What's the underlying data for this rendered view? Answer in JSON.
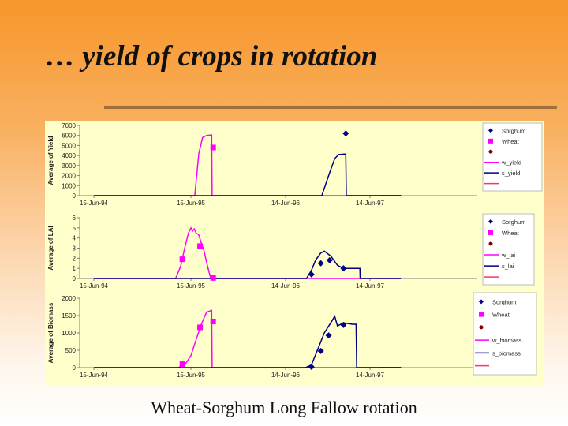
{
  "slide": {
    "title": "… yield of crops in rotation",
    "caption": "Wheat-Sorghum Long Fallow rotation"
  },
  "colors": {
    "sorghum": "#000080",
    "wheat": "#ff00ff",
    "marker3": "#800000",
    "axis_line": "#0000cc",
    "gridline": "#808080",
    "panel_bg": "#ffffcc"
  },
  "chart_data": [
    {
      "type": "line",
      "ylabel": "Average of Yield",
      "ylim": [
        0,
        7000
      ],
      "yticks": [
        0,
        1000,
        2000,
        3000,
        4000,
        5000,
        6000,
        7000
      ],
      "x_ticks": [
        "15-Jun-94",
        "15-Jun-95",
        "14-Jun-96",
        "14-Jun-97"
      ],
      "xlim": [
        "1994-06-15",
        "1997-10-15"
      ],
      "legend": [
        "Sorghum",
        "Wheat",
        "",
        "w_yield",
        "s_yield",
        ""
      ],
      "series": [
        {
          "name": "w_yield",
          "kind": "line",
          "color": "wheat",
          "points": [
            [
              "1994-06-15",
              0
            ],
            [
              "1995-07-20",
              0
            ],
            [
              "1995-08-05",
              4200
            ],
            [
              "1995-08-20",
              5800
            ],
            [
              "1995-09-05",
              6000
            ],
            [
              "1995-09-25",
              6050
            ],
            [
              "1995-09-27",
              0
            ],
            [
              "1996-12-01",
              0
            ],
            [
              "1997-06-14",
              0
            ],
            [
              "1997-10-15",
              0
            ]
          ]
        },
        {
          "name": "s_yield",
          "kind": "line",
          "color": "sorghum",
          "points": [
            [
              "1994-06-15",
              0
            ],
            [
              "1996-12-05",
              0
            ],
            [
              "1997-01-05",
              2300
            ],
            [
              "1997-01-25",
              3700
            ],
            [
              "1997-02-10",
              4100
            ],
            [
              "1997-03-10",
              4150
            ],
            [
              "1997-03-12",
              0
            ],
            [
              "1997-10-15",
              0
            ]
          ]
        },
        {
          "name": "Sorghum",
          "kind": "marker",
          "shape": "diamond",
          "color": "sorghum",
          "points": [
            [
              "1997-03-10",
              6200
            ]
          ]
        },
        {
          "name": "Wheat",
          "kind": "marker",
          "shape": "square",
          "color": "wheat",
          "points": [
            [
              "1995-10-01",
              4800
            ]
          ]
        }
      ],
      "red_tail": [
        "1997-07-25",
        "1997-10-15"
      ]
    },
    {
      "type": "line",
      "ylabel": "Average of LAI",
      "ylim": [
        0,
        6
      ],
      "yticks": [
        0,
        1,
        2,
        3,
        4,
        5,
        6
      ],
      "x_ticks": [
        "15-Jun-94",
        "15-Jun-95",
        "14-Jun-96",
        "14-Jun-97"
      ],
      "xlim": [
        "1994-06-15",
        "1997-10-15"
      ],
      "legend": [
        "Sorghum",
        "Wheat",
        "",
        "w_lai",
        "s_lai",
        ""
      ],
      "series": [
        {
          "name": "w_lai",
          "kind": "line",
          "color": "wheat",
          "points": [
            [
              "1994-06-15",
              0
            ],
            [
              "1995-05-05",
              0
            ],
            [
              "1995-05-25",
              1.2
            ],
            [
              "1995-06-10",
              3.0
            ],
            [
              "1995-06-25",
              4.5
            ],
            [
              "1995-07-05",
              5.0
            ],
            [
              "1995-07-12",
              4.7
            ],
            [
              "1995-07-18",
              4.9
            ],
            [
              "1995-07-25",
              4.5
            ],
            [
              "1995-08-05",
              4.3
            ],
            [
              "1995-08-15",
              3.5
            ],
            [
              "1995-08-25",
              2.8
            ],
            [
              "1995-09-05",
              1.6
            ],
            [
              "1995-09-15",
              0.6
            ],
            [
              "1995-09-22",
              0
            ],
            [
              "1997-10-15",
              0
            ]
          ]
        },
        {
          "name": "s_lai",
          "kind": "line",
          "color": "sorghum",
          "points": [
            [
              "1994-06-15",
              0
            ],
            [
              "1996-10-05",
              0
            ],
            [
              "1996-10-25",
              0.8
            ],
            [
              "1996-11-10",
              1.8
            ],
            [
              "1996-11-30",
              2.5
            ],
            [
              "1996-12-15",
              2.7
            ],
            [
              "1997-01-10",
              2.2
            ],
            [
              "1997-02-05",
              1.3
            ],
            [
              "1997-03-01",
              1.0
            ],
            [
              "1997-05-05",
              1.0
            ],
            [
              "1997-05-06",
              0
            ],
            [
              "1997-10-15",
              0
            ]
          ]
        },
        {
          "name": "Sorghum",
          "kind": "marker",
          "shape": "diamond",
          "color": "sorghum",
          "points": [
            [
              "1996-10-25",
              0.4
            ],
            [
              "1996-12-01",
              1.5
            ],
            [
              "1997-01-05",
              1.8
            ],
            [
              "1997-03-01",
              1.0
            ]
          ]
        },
        {
          "name": "Wheat",
          "kind": "marker",
          "shape": "square",
          "color": "wheat",
          "points": [
            [
              "1995-06-01",
              1.9
            ],
            [
              "1995-08-10",
              3.2
            ],
            [
              "1995-10-01",
              0.05
            ]
          ]
        }
      ]
    },
    {
      "type": "line",
      "ylabel": "Average of Biomass",
      "ylim": [
        0,
        2000
      ],
      "yticks": [
        0,
        500,
        1000,
        1500,
        2000
      ],
      "x_ticks": [
        "15-Jun-94",
        "15-Jun-95",
        "14-Jun-96",
        "14-Jun-97"
      ],
      "xlim": [
        "1994-06-15",
        "1997-10-15"
      ],
      "legend": [
        "Sorghum",
        "Wheat",
        "",
        "w_biomass",
        "s_biomass",
        ""
      ],
      "series": [
        {
          "name": "w_biomass",
          "kind": "line",
          "color": "wheat",
          "points": [
            [
              "1994-06-15",
              0
            ],
            [
              "1995-05-15",
              0
            ],
            [
              "1995-06-10",
              80
            ],
            [
              "1995-07-05",
              350
            ],
            [
              "1995-07-25",
              800
            ],
            [
              "1995-08-15",
              1250
            ],
            [
              "1995-09-05",
              1600
            ],
            [
              "1995-09-25",
              1650
            ],
            [
              "1995-09-27",
              0
            ],
            [
              "1996-12-01",
              0
            ],
            [
              "1997-06-14",
              0
            ],
            [
              "1997-10-15",
              0
            ]
          ]
        },
        {
          "name": "s_biomass",
          "kind": "line",
          "color": "sorghum",
          "points": [
            [
              "1994-06-15",
              0
            ],
            [
              "1996-10-01",
              0
            ],
            [
              "1996-10-25",
              80
            ],
            [
              "1996-11-20",
              550
            ],
            [
              "1996-12-15",
              1000
            ],
            [
              "1997-01-10",
              1300
            ],
            [
              "1997-01-25",
              1480
            ],
            [
              "1997-02-05",
              1200
            ],
            [
              "1997-03-01",
              1290
            ],
            [
              "1997-04-05",
              1250
            ],
            [
              "1997-04-20",
              1250
            ],
            [
              "1997-04-22",
              0
            ],
            [
              "1997-10-15",
              0
            ]
          ]
        },
        {
          "name": "Sorghum",
          "kind": "marker",
          "shape": "diamond",
          "color": "sorghum",
          "points": [
            [
              "1996-10-25",
              20
            ],
            [
              "1996-12-01",
              480
            ],
            [
              "1997-01-01",
              930
            ],
            [
              "1997-03-01",
              1230
            ]
          ]
        },
        {
          "name": "Wheat",
          "kind": "marker",
          "shape": "square",
          "color": "wheat",
          "points": [
            [
              "1995-06-01",
              100
            ],
            [
              "1995-08-10",
              1160
            ],
            [
              "1995-10-01",
              1330
            ]
          ]
        }
      ],
      "red_tail": [
        "1997-07-25",
        "1997-10-15"
      ]
    }
  ]
}
